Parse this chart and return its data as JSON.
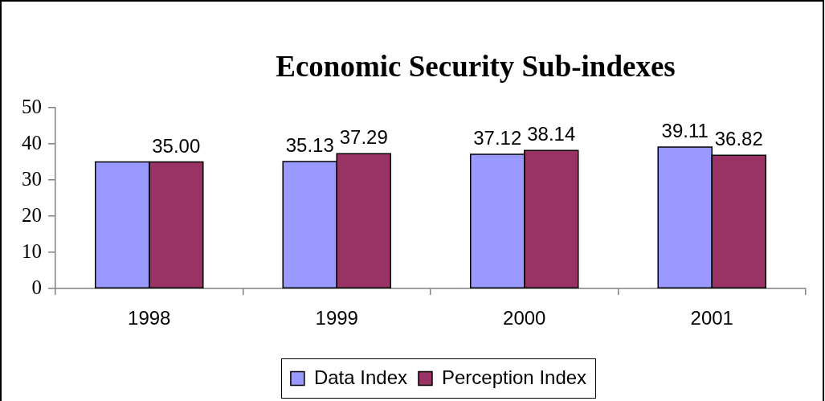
{
  "chart_data": {
    "type": "bar",
    "title": "Economic Security Sub-indexes",
    "categories": [
      "1998",
      "1999",
      "2000",
      "2001"
    ],
    "series": [
      {
        "name": "Data Index",
        "color": "#9999ff",
        "values": [
          35,
          35.13,
          37.12,
          39.11
        ],
        "value_labels": [
          null,
          "35.13",
          "37.12",
          "39.11"
        ]
      },
      {
        "name": "Perception Index",
        "color": "#993366",
        "values": [
          35.0,
          37.29,
          38.14,
          36.82
        ],
        "value_labels": [
          "35.00",
          "37.29",
          "38.14",
          "36.82"
        ]
      }
    ],
    "ylim": [
      0,
      50
    ],
    "yticks": [
      0,
      10,
      20,
      30,
      40,
      50
    ],
    "grid": false,
    "legend": "bottom"
  }
}
